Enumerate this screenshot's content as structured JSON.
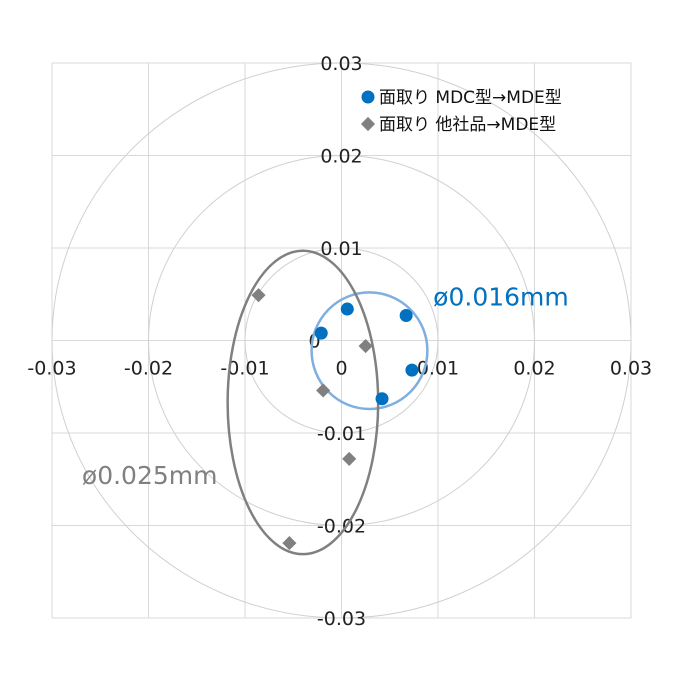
{
  "chart_data": {
    "type": "scatter",
    "xlim": [
      -0.03,
      0.03
    ],
    "ylim": [
      -0.03,
      0.03
    ],
    "grid": true,
    "polar_rings": [
      0.01,
      0.02,
      0.03
    ],
    "x_ticks": [
      "-0.03",
      "-0.02",
      "-0.01",
      "0",
      "0.01",
      "0.02",
      "0.03"
    ],
    "y_ticks": [
      "0.03",
      "0.02",
      "0.01",
      "0",
      "-0.01",
      "-0.02",
      "-0.03"
    ],
    "legend_position": "top-right",
    "series": [
      {
        "name": "面取り MDC型→MDE型",
        "marker": "circle",
        "color": "#0070C0",
        "points": [
          [
            -0.0021,
            0.0008
          ],
          [
            0.0006,
            0.0034
          ],
          [
            0.0067,
            0.0027
          ],
          [
            0.0073,
            -0.0032
          ],
          [
            0.0042,
            -0.0063
          ]
        ]
      },
      {
        "name": "面取り 他社品→MDE型",
        "marker": "diamond",
        "color": "#808080",
        "points": [
          [
            -0.0086,
            0.0049
          ],
          [
            0.0025,
            -0.0006
          ],
          [
            -0.0019,
            -0.0054
          ],
          [
            0.0008,
            -0.0128
          ],
          [
            -0.0054,
            -0.0219
          ]
        ]
      }
    ],
    "annotations": [
      {
        "text": "ø0.016mm",
        "color": "#0070C0",
        "ellipse_color": "#7FAEE0",
        "center": [
          0.0029,
          -0.0011
        ],
        "radii": [
          0.006,
          0.0063
        ],
        "label_at": [
          0.0095,
          0.0038
        ]
      },
      {
        "text": "ø0.025mm",
        "color": "#808080",
        "ellipse_color": "#808080",
        "center": [
          -0.004,
          -0.0067
        ],
        "radii": [
          0.0078,
          0.0164
        ],
        "label_at": [
          -0.0269,
          -0.0155
        ]
      }
    ]
  }
}
